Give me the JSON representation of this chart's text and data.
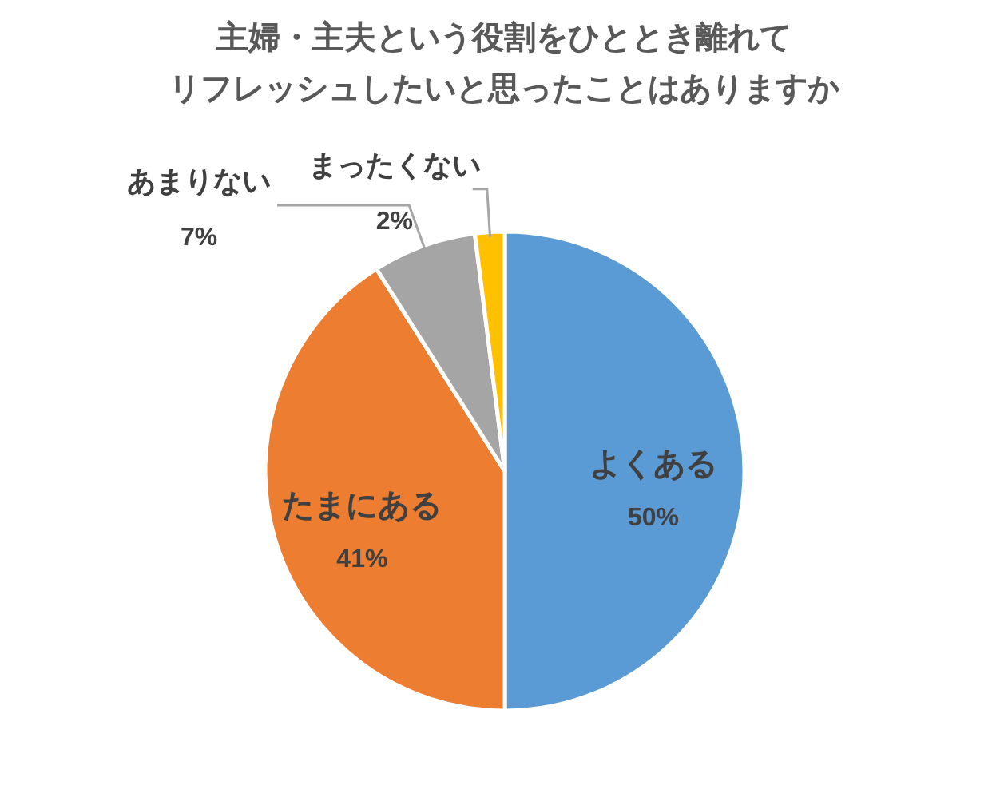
{
  "chart_data": {
    "type": "pie",
    "title": "主婦・主夫という役割をひととき離れてリフレッシュしたいと思ったことはありますか",
    "categories": [
      "よくある",
      "たまにある",
      "あまりない",
      "まったくない"
    ],
    "values": [
      50,
      41,
      7,
      2
    ],
    "value_labels": [
      "50%",
      "41%",
      "7%",
      "2%"
    ],
    "colors": [
      "#5b9bd5",
      "#ed7d31",
      "#a5a5a5",
      "#ffc000"
    ],
    "data_labels": true,
    "legend": false
  }
}
